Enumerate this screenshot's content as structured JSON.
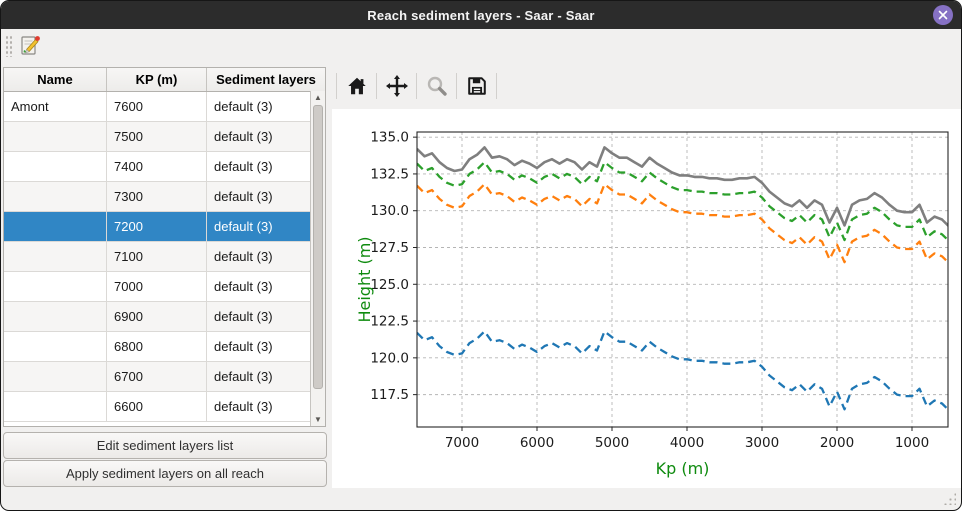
{
  "window": {
    "title": "Reach sediment layers - Saar - Saar",
    "accent_color": "#3086c5",
    "titlebar_color": "#2c2c2c",
    "close_button_color": "#8671c4"
  },
  "toolbar": {
    "edit_icon": "edit-sediment-icon"
  },
  "table": {
    "columns": [
      "Name",
      "KP (m)",
      "Sediment layers"
    ],
    "rows": [
      {
        "name": "Amont",
        "kp": "7600",
        "layers": "default (3)",
        "selected": false
      },
      {
        "name": "",
        "kp": "7500",
        "layers": "default (3)",
        "selected": false
      },
      {
        "name": "",
        "kp": "7400",
        "layers": "default (3)",
        "selected": false
      },
      {
        "name": "",
        "kp": "7300",
        "layers": "default (3)",
        "selected": false
      },
      {
        "name": "",
        "kp": "7200",
        "layers": "default (3)",
        "selected": true
      },
      {
        "name": "",
        "kp": "7100",
        "layers": "default (3)",
        "selected": false
      },
      {
        "name": "",
        "kp": "7000",
        "layers": "default (3)",
        "selected": false
      },
      {
        "name": "",
        "kp": "6900",
        "layers": "default (3)",
        "selected": false
      },
      {
        "name": "",
        "kp": "6800",
        "layers": "default (3)",
        "selected": false
      },
      {
        "name": "",
        "kp": "6700",
        "layers": "default (3)",
        "selected": false
      },
      {
        "name": "",
        "kp": "6600",
        "layers": "default (3)",
        "selected": false
      }
    ]
  },
  "buttons": {
    "edit": "Edit sediment layers list",
    "apply": "Apply sediment layers on all reach"
  },
  "plot_toolbar": {
    "icons": [
      "home-icon",
      "pan-icon",
      "zoom-icon",
      "save-icon"
    ]
  },
  "chart_data": {
    "type": "line",
    "title": "",
    "xlabel": "Kp (m)",
    "ylabel": "Height (m)",
    "axis_label_color": "#0f8b0f",
    "x_inverted": true,
    "grid": true,
    "legend": "none",
    "xlim": [
      7600,
      520
    ],
    "ylim": [
      115.3,
      135.35
    ],
    "xticks": [
      7000,
      6000,
      5000,
      4000,
      3000,
      2000,
      1000
    ],
    "yticks": [
      117.5,
      120.0,
      122.5,
      125.0,
      127.5,
      130.0,
      132.5,
      135.0
    ],
    "x": [
      7600,
      7500,
      7400,
      7300,
      7200,
      7100,
      7000,
      6900,
      6800,
      6700,
      6600,
      6500,
      6400,
      6300,
      6200,
      6100,
      6000,
      5900,
      5800,
      5700,
      5600,
      5500,
      5400,
      5300,
      5200,
      5100,
      5000,
      4900,
      4800,
      4700,
      4600,
      4500,
      4400,
      4300,
      4200,
      4100,
      4000,
      3900,
      3800,
      3700,
      3600,
      3500,
      3400,
      3300,
      3200,
      3100,
      3000,
      2900,
      2800,
      2700,
      2600,
      2500,
      2400,
      2300,
      2200,
      2100,
      2000,
      1900,
      1800,
      1700,
      1600,
      1500,
      1400,
      1300,
      1200,
      1100,
      1000,
      900,
      800,
      700,
      600,
      500
    ],
    "series": [
      {
        "name": "series-1-gray",
        "color": "#7f7f7f",
        "style": "solid",
        "width": 2.6,
        "values": [
          134.2,
          133.7,
          133.9,
          133.3,
          132.9,
          132.7,
          132.8,
          133.5,
          133.8,
          134.3,
          133.6,
          133.7,
          133.5,
          133.1,
          133.4,
          133.2,
          132.9,
          133.3,
          133.5,
          133.2,
          133.5,
          133.3,
          132.8,
          133.3,
          133.0,
          134.3,
          133.9,
          133.6,
          133.6,
          133.3,
          133.0,
          133.6,
          133.2,
          132.9,
          132.6,
          132.4,
          132.4,
          132.3,
          132.3,
          132.2,
          132.2,
          132.1,
          132.1,
          132.2,
          132.2,
          132.3,
          131.9,
          131.3,
          130.9,
          130.5,
          130.3,
          130.7,
          130.2,
          130.7,
          130.4,
          129.2,
          130.2,
          129.0,
          130.4,
          130.7,
          130.8,
          131.2,
          130.9,
          130.4,
          130.0,
          129.9,
          129.9,
          130.4,
          129.2,
          129.6,
          129.4,
          128.9
        ]
      },
      {
        "name": "series-2-green",
        "color": "#2ca02c",
        "style": "dashed",
        "width": 2.3,
        "values": [
          133.2,
          132.7,
          132.9,
          132.3,
          131.9,
          131.7,
          131.8,
          132.5,
          132.8,
          133.3,
          132.6,
          132.7,
          132.5,
          132.1,
          132.4,
          132.2,
          131.9,
          132.3,
          132.5,
          132.2,
          132.5,
          132.3,
          131.8,
          132.3,
          132.0,
          133.3,
          132.9,
          132.6,
          132.6,
          132.3,
          132.0,
          132.6,
          132.2,
          131.9,
          131.6,
          131.4,
          131.4,
          131.3,
          131.3,
          131.2,
          131.2,
          131.1,
          131.1,
          131.2,
          131.2,
          131.3,
          130.9,
          130.3,
          129.9,
          129.5,
          129.3,
          129.7,
          129.2,
          129.7,
          129.4,
          128.2,
          129.2,
          128.0,
          129.4,
          129.7,
          129.8,
          130.2,
          129.9,
          129.4,
          129.0,
          128.9,
          128.9,
          129.4,
          128.2,
          128.6,
          128.4,
          127.9
        ]
      },
      {
        "name": "series-3-orange",
        "color": "#ff7f0e",
        "style": "dashed",
        "width": 2.3,
        "values": [
          131.7,
          131.2,
          131.4,
          130.8,
          130.4,
          130.2,
          130.3,
          131.0,
          131.3,
          131.8,
          131.1,
          131.2,
          131.0,
          130.6,
          130.9,
          130.7,
          130.4,
          130.8,
          131.0,
          130.7,
          131.0,
          130.8,
          130.3,
          130.8,
          130.5,
          131.8,
          131.4,
          131.1,
          131.1,
          130.8,
          130.5,
          131.1,
          130.7,
          130.4,
          130.1,
          129.9,
          129.9,
          129.8,
          129.8,
          129.7,
          129.7,
          129.6,
          129.6,
          129.7,
          129.7,
          129.8,
          129.4,
          128.8,
          128.4,
          128.0,
          127.8,
          128.2,
          127.7,
          128.2,
          127.9,
          126.7,
          127.7,
          126.5,
          127.9,
          128.2,
          128.3,
          128.7,
          128.4,
          127.9,
          127.5,
          127.4,
          127.4,
          127.9,
          126.7,
          127.1,
          126.9,
          126.4
        ]
      },
      {
        "name": "series-4-blue",
        "color": "#1f77b4",
        "style": "dashed",
        "width": 2.3,
        "values": [
          121.7,
          121.2,
          121.4,
          120.8,
          120.4,
          120.2,
          120.3,
          121.0,
          121.3,
          121.8,
          121.1,
          121.2,
          121.0,
          120.6,
          120.9,
          120.7,
          120.4,
          120.8,
          121.0,
          120.7,
          121.0,
          120.8,
          120.3,
          120.8,
          120.5,
          121.8,
          121.4,
          121.1,
          121.1,
          120.8,
          120.5,
          121.1,
          120.7,
          120.4,
          120.1,
          119.9,
          119.9,
          119.8,
          119.8,
          119.7,
          119.7,
          119.6,
          119.6,
          119.7,
          119.7,
          119.8,
          119.4,
          118.8,
          118.4,
          118.0,
          117.8,
          118.2,
          117.7,
          118.2,
          117.9,
          116.7,
          117.7,
          116.5,
          117.9,
          118.2,
          118.3,
          118.7,
          118.4,
          117.9,
          117.5,
          117.4,
          117.4,
          117.9,
          116.7,
          117.1,
          116.9,
          116.4
        ]
      }
    ]
  }
}
